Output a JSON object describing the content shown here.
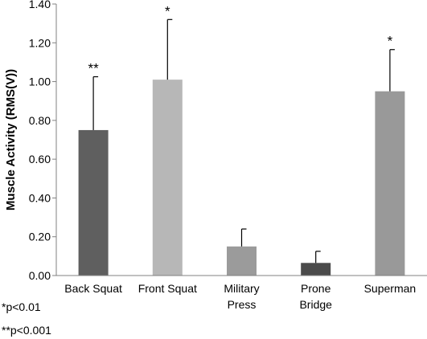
{
  "chart_data": {
    "type": "bar",
    "categories": [
      "Back Squat",
      "Front Squat",
      "Military Press",
      "Prone Bridge",
      "Superman"
    ],
    "category_lines": [
      [
        "Back Squat"
      ],
      [
        "Front Squat"
      ],
      [
        "Military",
        "Press"
      ],
      [
        "Prone",
        "Bridge"
      ],
      [
        "Superman"
      ]
    ],
    "values": [
      0.75,
      1.01,
      0.15,
      0.065,
      0.95
    ],
    "error_upper": [
      1.025,
      1.32,
      0.24,
      0.125,
      1.165
    ],
    "significance": [
      "**",
      "*",
      "",
      "",
      "*"
    ],
    "colors": [
      "#5f5f5f",
      "#b7b7b7",
      "#9b9b9b",
      "#4b4b4b",
      "#999999"
    ],
    "ylabel": "Muscle Activity (RMS(V))",
    "ylim": [
      0,
      1.4
    ],
    "yticks": [
      "0.00",
      "0.20",
      "0.40",
      "0.60",
      "0.80",
      "1.00",
      "1.20",
      "1.40"
    ],
    "grid": false,
    "footnotes": [
      "*p<0.01",
      "**p<0.001"
    ]
  }
}
